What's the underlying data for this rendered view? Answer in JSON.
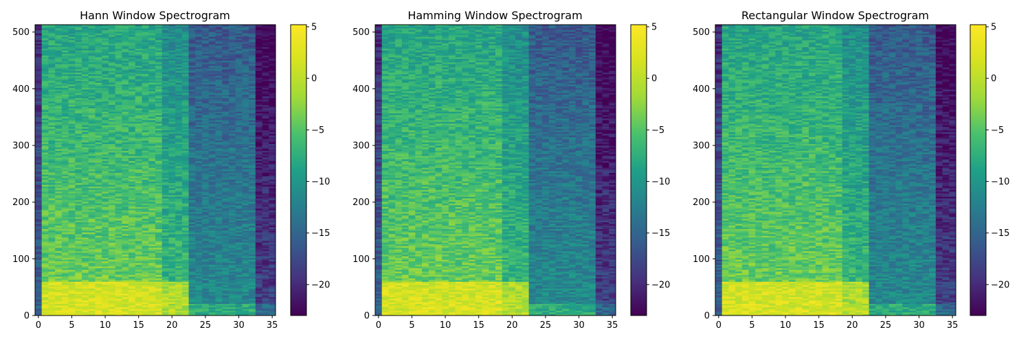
{
  "chart_data": [
    {
      "type": "heatmap",
      "title": "Hann Window Spectrogram",
      "xlabel": "",
      "ylabel": "",
      "x_ticks": [
        0,
        5,
        10,
        15,
        20,
        25,
        30,
        35
      ],
      "y_ticks": [
        0,
        100,
        200,
        300,
        400,
        500
      ],
      "xlim": [
        -0.5,
        35.5
      ],
      "ylim": [
        0,
        513
      ],
      "n_time_bins": 36,
      "n_freq_bins": 513,
      "colorbar": {
        "ticks": [
          5,
          0,
          -5,
          -10,
          -15,
          -20
        ],
        "tick_labels": [
          "5",
          "0",
          "−5",
          "−10",
          "−15",
          "−20"
        ],
        "range": [
          -23,
          5.2
        ]
      },
      "colormap": "viridis",
      "grid": false,
      "seed": 11
    },
    {
      "type": "heatmap",
      "title": "Hamming Window Spectrogram",
      "xlabel": "",
      "ylabel": "",
      "x_ticks": [
        0,
        5,
        10,
        15,
        20,
        25,
        30,
        35
      ],
      "y_ticks": [
        0,
        100,
        200,
        300,
        400,
        500
      ],
      "xlim": [
        -0.5,
        35.5
      ],
      "ylim": [
        0,
        513
      ],
      "n_time_bins": 36,
      "n_freq_bins": 513,
      "colorbar": {
        "ticks": [
          5,
          0,
          -5,
          -10,
          -15,
          -20
        ],
        "tick_labels": [
          "5",
          "0",
          "−5",
          "−10",
          "−15",
          "−20"
        ],
        "range": [
          -23,
          5.2
        ]
      },
      "colormap": "viridis",
      "grid": false,
      "seed": 23
    },
    {
      "type": "heatmap",
      "title": "Rectangular Window Spectrogram",
      "xlabel": "",
      "ylabel": "",
      "x_ticks": [
        0,
        5,
        10,
        15,
        20,
        25,
        30,
        35
      ],
      "y_ticks": [
        0,
        100,
        200,
        300,
        400,
        500
      ],
      "xlim": [
        -0.5,
        35.5
      ],
      "ylim": [
        0,
        513
      ],
      "n_time_bins": 36,
      "n_freq_bins": 513,
      "colorbar": {
        "ticks": [
          5,
          0,
          -5,
          -10,
          -15,
          -20
        ],
        "tick_labels": [
          "5",
          "0",
          "−5",
          "−10",
          "−15",
          "−20"
        ],
        "range": [
          -23,
          5.2
        ]
      },
      "colormap": "viridis",
      "grid": false,
      "seed": 37
    }
  ]
}
